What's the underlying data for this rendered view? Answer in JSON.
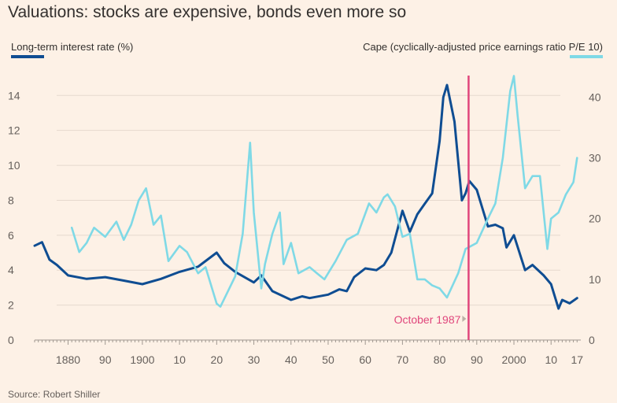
{
  "chart_data": {
    "type": "line",
    "title": "Valuations: stocks are expensive, bonds even more so",
    "source": "Source: Robert Shiller",
    "series": [
      {
        "name": "Long-term interest rate (%)",
        "axis": "left",
        "color": "#0f4d92",
        "x": [
          1871,
          1873,
          1875,
          1877,
          1880,
          1885,
          1890,
          1895,
          1900,
          1905,
          1910,
          1915,
          1920,
          1922,
          1925,
          1930,
          1932,
          1935,
          1940,
          1943,
          1945,
          1950,
          1953,
          1955,
          1957,
          1960,
          1963,
          1965,
          1967,
          1970,
          1972,
          1974,
          1976,
          1978,
          1980,
          1981,
          1982,
          1984,
          1986,
          1987,
          1988,
          1990,
          1993,
          1995,
          1997,
          1998,
          2000,
          2003,
          2005,
          2008,
          2010,
          2012,
          2013,
          2015,
          2017
        ],
        "y": [
          5.4,
          5.6,
          4.6,
          4.3,
          3.7,
          3.5,
          3.6,
          3.4,
          3.2,
          3.5,
          3.9,
          4.2,
          5.0,
          4.4,
          3.9,
          3.3,
          3.7,
          2.8,
          2.3,
          2.5,
          2.4,
          2.6,
          2.9,
          2.8,
          3.6,
          4.1,
          4.0,
          4.3,
          5.0,
          7.4,
          6.2,
          7.2,
          7.8,
          8.4,
          11.4,
          13.9,
          14.6,
          12.5,
          8.0,
          8.4,
          9.1,
          8.6,
          6.5,
          6.6,
          6.4,
          5.3,
          6.0,
          4.0,
          4.3,
          3.7,
          3.2,
          1.8,
          2.3,
          2.1,
          2.4
        ]
      },
      {
        "name": "Cape (cyclically-adjusted price earnings ratio P/E 10)",
        "axis": "right",
        "color": "#7fd9e6",
        "x": [
          1881,
          1883,
          1885,
          1887,
          1890,
          1893,
          1895,
          1897,
          1899,
          1901,
          1903,
          1905,
          1907,
          1910,
          1912,
          1915,
          1917,
          1920,
          1921,
          1923,
          1925,
          1927,
          1929,
          1930,
          1932,
          1933,
          1935,
          1937,
          1938,
          1940,
          1942,
          1945,
          1947,
          1949,
          1952,
          1955,
          1958,
          1961,
          1963,
          1965,
          1966,
          1968,
          1970,
          1972,
          1974,
          1976,
          1978,
          1980,
          1982,
          1985,
          1987,
          1990,
          1993,
          1995,
          1997,
          1999,
          2000,
          2001,
          2003,
          2005,
          2007,
          2009,
          2010,
          2012,
          2014,
          2016,
          2017
        ],
        "y": [
          18.5,
          14.5,
          16,
          18.5,
          17,
          19.5,
          16.5,
          19,
          23,
          25,
          19,
          20.5,
          13,
          15.5,
          14.5,
          11,
          12,
          6,
          5.5,
          8,
          10.5,
          17.5,
          32.5,
          21,
          8.5,
          12.5,
          17.5,
          21,
          12.5,
          16,
          11,
          12,
          11,
          10,
          13,
          16.5,
          17.5,
          22.5,
          21,
          23.5,
          24,
          22,
          17,
          17.5,
          10,
          10,
          9,
          8.5,
          7,
          11,
          15,
          16,
          20,
          22.5,
          30,
          41,
          43.5,
          37,
          25,
          27,
          27,
          15,
          20,
          21,
          24,
          26,
          30
        ]
      }
    ],
    "left_axis": {
      "label": "Long-term interest rate (%)",
      "ticks": [
        0,
        2,
        4,
        6,
        8,
        10,
        12,
        14
      ],
      "range": [
        0,
        15.5
      ]
    },
    "right_axis": {
      "label": "Cape (cyclically-adjusted price earnings ratio P/E 10)",
      "ticks": [
        0,
        10,
        20,
        30,
        40
      ],
      "range": [
        0,
        44.6
      ]
    },
    "x_axis": {
      "range": [
        1871,
        2018
      ],
      "ticks": [
        {
          "year": 1880,
          "label": "1880"
        },
        {
          "year": 1890,
          "label": "90"
        },
        {
          "year": 1900,
          "label": "1900"
        },
        {
          "year": 1910,
          "label": "10"
        },
        {
          "year": 1920,
          "label": "20"
        },
        {
          "year": 1930,
          "label": "30"
        },
        {
          "year": 1940,
          "label": "40"
        },
        {
          "year": 1950,
          "label": "50"
        },
        {
          "year": 1960,
          "label": "60"
        },
        {
          "year": 1970,
          "label": "70"
        },
        {
          "year": 1980,
          "label": "80"
        },
        {
          "year": 1990,
          "label": "90"
        },
        {
          "year": 2000,
          "label": "2000"
        },
        {
          "year": 2010,
          "label": "10"
        },
        {
          "year": 2017,
          "label": "17"
        }
      ]
    },
    "annotations": [
      {
        "x": 1987.8,
        "label": "October 1987",
        "color": "#e0467c"
      }
    ],
    "grid": true
  }
}
